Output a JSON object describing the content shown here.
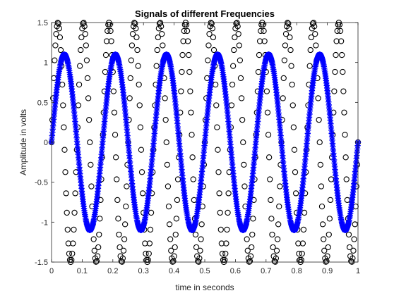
{
  "chart_data": {
    "type": "scatter",
    "title": "Signals of different Frequencies",
    "xlabel": "time in seconds",
    "ylabel": "Amplitude in volts",
    "xlim": [
      0,
      1
    ],
    "ylim": [
      -1.5,
      1.5
    ],
    "grid": false,
    "xticks": [
      "0",
      "0.1",
      "0.2",
      "0.3",
      "0.4",
      "0.5",
      "0.6",
      "0.7",
      "0.8",
      "0.9",
      "1"
    ],
    "yticks": [
      "1.5",
      "1",
      "0.5",
      "0",
      "-0.5",
      "-1",
      "-1.5"
    ],
    "series": [
      {
        "marker": "circle",
        "color": "#000000",
        "amplitude": 1.5,
        "frequency_hz": 12,
        "x_start": 0,
        "x_end": 1,
        "x_step": 0.0025
      },
      {
        "marker": "asterisk",
        "color": "#0000ff",
        "amplitude": 1.1,
        "frequency_hz": 6,
        "x_start": 0,
        "x_end": 1,
        "x_step": 0.001
      }
    ]
  }
}
